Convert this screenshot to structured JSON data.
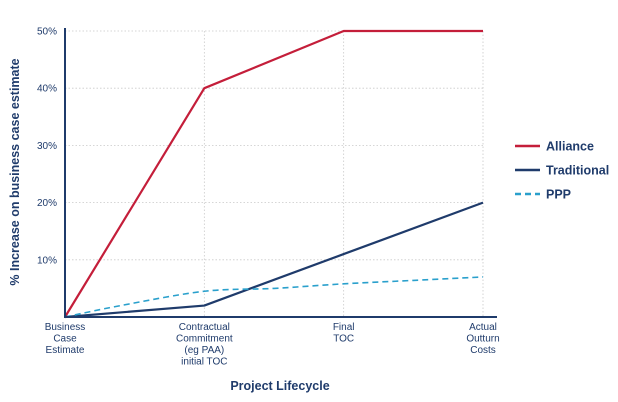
{
  "chart_data": {
    "type": "line",
    "title": "",
    "xlabel": "Project Lifecycle",
    "ylabel": "% Increase on business case estimate",
    "categories": [
      [
        "Business",
        "Case",
        "Estimate"
      ],
      [
        "Contractual",
        "Commitment",
        "(eg PAA)",
        "initial TOC"
      ],
      [
        "Final",
        "TOC"
      ],
      [
        "Actual",
        "Outturn",
        "Costs"
      ]
    ],
    "x": [
      0,
      1,
      2,
      3
    ],
    "ylim": [
      0,
      50
    ],
    "yticks": [
      "10%",
      "20%",
      "30%",
      "40%",
      "50%"
    ],
    "ytick_values": [
      10,
      20,
      30,
      40,
      50
    ],
    "grid": true,
    "legend": "right",
    "series": [
      {
        "name": "Alliance",
        "color": "#c41e3a",
        "style": "solid",
        "points": [
          [
            0,
            0
          ],
          [
            1,
            40
          ],
          [
            2,
            50
          ],
          [
            3,
            50
          ]
        ]
      },
      {
        "name": "Traditional",
        "color": "#1f3b6b",
        "style": "solid",
        "points": [
          [
            0,
            0
          ],
          [
            1,
            2
          ],
          [
            2,
            11
          ],
          [
            3,
            20
          ]
        ]
      },
      {
        "name": "PPP",
        "color": "#2aa0cc",
        "style": "dashed",
        "points": [
          [
            0,
            0
          ],
          [
            0.4,
            2
          ],
          [
            1,
            4.5
          ],
          [
            1.5,
            5
          ],
          [
            2,
            5.8
          ],
          [
            2.5,
            6.4
          ],
          [
            3,
            7
          ]
        ]
      }
    ]
  }
}
